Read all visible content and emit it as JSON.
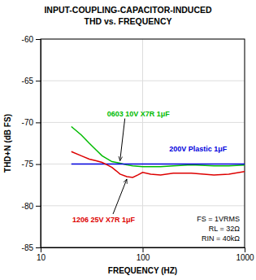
{
  "chart_data": {
    "type": "line",
    "title": "INPUT-COUPLING-CAPACITOR-INDUCED",
    "subtitle": "THD vs. FREQUENCY",
    "x_label": "FREQUENCY (HZ)",
    "y_label": "THD+N (dB FS)",
    "log": "x",
    "grid": true,
    "xlim": [
      10,
      1000
    ],
    "xticks": [
      10,
      100,
      1000
    ],
    "ylim": [
      -85,
      -60
    ],
    "yticks": [
      -85,
      -80,
      -75,
      -70,
      -65,
      -60
    ],
    "annotations": [
      "FS = 1VRMS",
      "RL = 32Ω",
      "RIN = 40kΩ"
    ],
    "series": [
      {
        "name": "0603 10V X7R 1μF",
        "color": "#00bb00",
        "x": [
          20,
          25,
          30,
          35,
          40,
          50,
          60,
          70,
          80,
          100,
          150,
          200,
          300,
          500,
          700,
          1000
        ],
        "values": [
          -70.5,
          -71.5,
          -72.5,
          -73.3,
          -74.0,
          -74.7,
          -74.9,
          -75.1,
          -75.2,
          -75.3,
          -75.3,
          -75.2,
          -75.1,
          -75.2,
          -75.2,
          -75.1
        ]
      },
      {
        "name": "200V Plastic 1μF",
        "color": "#0000dd",
        "x": [
          20,
          50,
          100,
          200,
          500,
          1000
        ],
        "values": [
          -75.0,
          -75.0,
          -75.0,
          -75.0,
          -75.0,
          -75.0
        ]
      },
      {
        "name": "1206 25V X7R 1μF",
        "color": "#dd0000",
        "x": [
          20,
          25,
          30,
          35,
          40,
          45,
          50,
          55,
          60,
          70,
          80,
          90,
          100,
          120,
          150,
          200,
          300,
          500,
          700,
          1000
        ],
        "values": [
          -73.5,
          -74.0,
          -74.4,
          -74.6,
          -74.8,
          -75.1,
          -75.4,
          -75.8,
          -76.2,
          -76.5,
          -76.6,
          -76.3,
          -76.0,
          -76.2,
          -76.3,
          -76.1,
          -76.1,
          -76.3,
          -76.2,
          -75.9
        ]
      }
    ]
  }
}
